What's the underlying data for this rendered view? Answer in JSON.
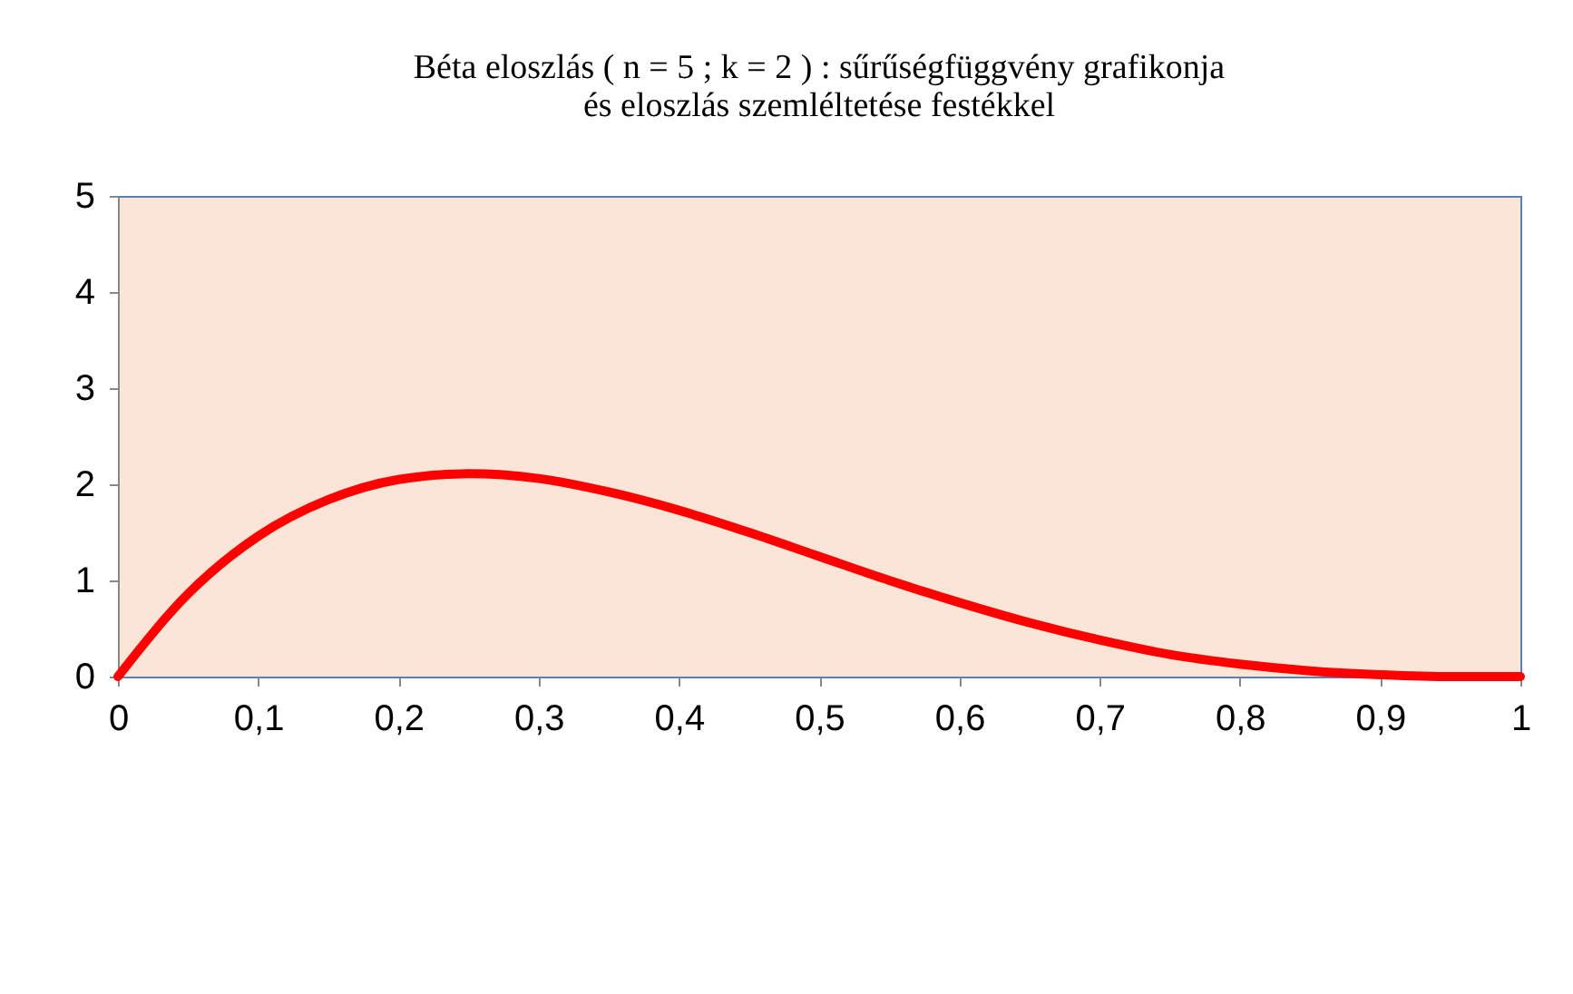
{
  "chart_data": {
    "type": "line",
    "title": "Béta eloszlás ( n = 5 ;  k = 2 ) : sűrűségfüggvény grafikonja\nés eloszlás szemléltetése festékkel",
    "x": [
      0,
      0.05,
      0.1,
      0.15,
      0.2,
      0.25,
      0.3,
      0.35,
      0.4,
      0.45,
      0.5,
      0.55,
      0.6,
      0.65,
      0.7,
      0.75,
      0.8,
      0.85,
      0.9,
      0.95,
      1
    ],
    "series": [
      {
        "color": "#ff0000",
        "values": [
          0,
          0.86,
          1.46,
          1.84,
          2.05,
          2.11,
          2.06,
          1.92,
          1.73,
          1.5,
          1.25,
          1.0,
          0.77,
          0.56,
          0.38,
          0.23,
          0.13,
          0.06,
          0.02,
          0,
          0
        ]
      }
    ],
    "xlim": [
      0,
      1
    ],
    "ylim": [
      0,
      5
    ],
    "xticks": [
      0,
      {
        "value": 0.1,
        "label": "0,1"
      },
      {
        "value": 0.2,
        "label": "0,2"
      },
      {
        "value": 0.3,
        "label": "0,3"
      },
      {
        "value": 0.4,
        "label": "0,4"
      },
      {
        "value": 0.5,
        "label": "0,5"
      },
      {
        "value": 0.6,
        "label": "0,6"
      },
      {
        "value": 0.7,
        "label": "0,7"
      },
      {
        "value": 0.8,
        "label": "0,8"
      },
      {
        "value": 0.9,
        "label": "0,9"
      },
      1
    ],
    "yticks": [
      0,
      1,
      2,
      3,
      4,
      5
    ],
    "grid": false,
    "legend": false,
    "marker": "none",
    "line_style": "solid"
  }
}
